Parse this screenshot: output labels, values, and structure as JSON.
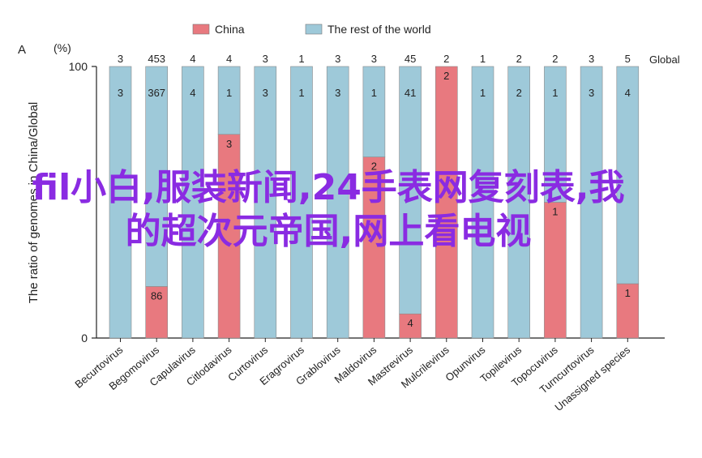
{
  "chart_data": {
    "type": "bar",
    "stacked": true,
    "panel_label": "A",
    "ylabel": "The ratio of genomes in China/Global",
    "yunit": "(%)",
    "ylim": [
      0,
      100
    ],
    "yticks": [
      "0",
      "100"
    ],
    "top_label_title": "Global",
    "categories": [
      "Becurtovirus",
      "Begomovirus",
      "Capulavirus",
      "Citlodavirus",
      "Curtovirus",
      "Eragrovirus",
      "Grablovirus",
      "Maldovirus",
      "Mastrevirus",
      "Mulcrilevirus",
      "Opunvirus",
      "Topilevirus",
      "Topocuvirus",
      "Turncurtovirus",
      "Unassigned species"
    ],
    "global_counts": [
      "3",
      "453",
      "4",
      "4",
      "3",
      "1",
      "3",
      "3",
      "45",
      "2",
      "1",
      "2",
      "2",
      "3",
      "5"
    ],
    "series": [
      {
        "name": "China",
        "color": "#e8797f",
        "values": [
          0,
          18.98,
          0,
          75,
          0,
          0,
          0,
          66.67,
          8.89,
          100,
          0,
          0,
          50,
          0,
          20
        ],
        "labels": [
          "",
          "86",
          "",
          "3",
          "",
          "",
          "",
          "2",
          "4",
          "2",
          "",
          "",
          "1",
          "",
          "1"
        ]
      },
      {
        "name": "The rest of the world",
        "color": "#9ec9d9",
        "values": [
          100,
          81.02,
          100,
          25,
          100,
          100,
          100,
          33.33,
          91.11,
          0,
          100,
          100,
          50,
          100,
          80
        ],
        "labels": [
          "3",
          "367",
          "4",
          "1",
          "3",
          "1",
          "3",
          "1",
          "41",
          "",
          "1",
          "2",
          "1",
          "3",
          "4"
        ]
      }
    ]
  },
  "overlay_text": "fil小白,服装新闻,24手表网复刻表,我的超次元帝国,网上看电视"
}
